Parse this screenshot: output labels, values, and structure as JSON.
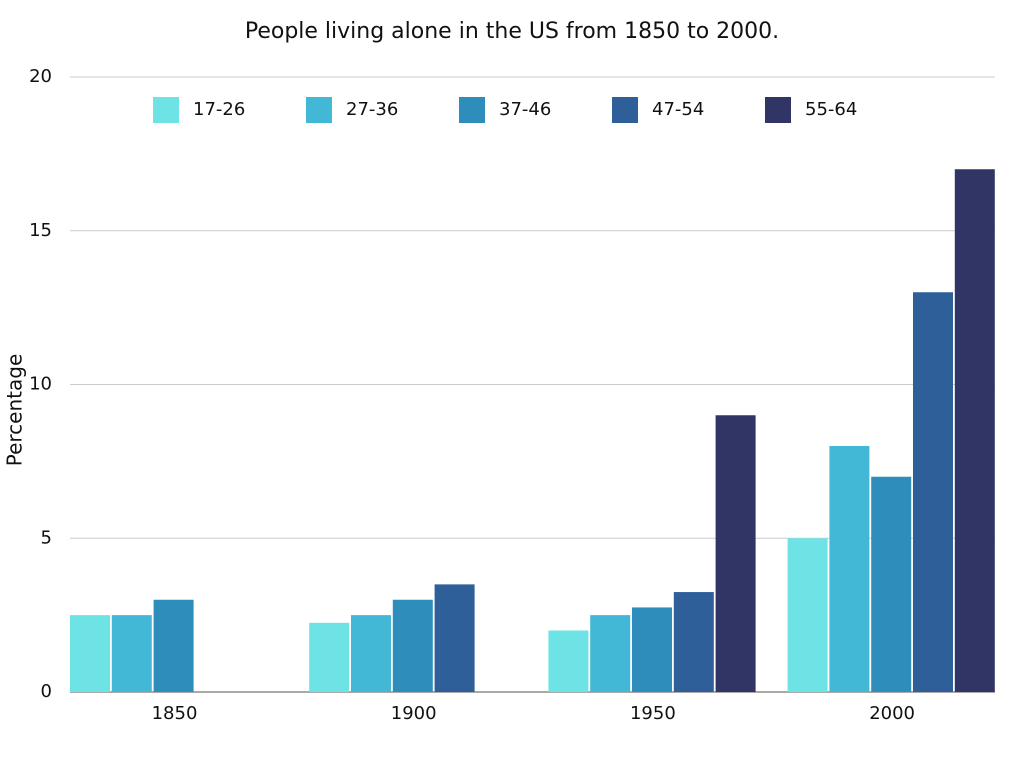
{
  "chart_data": {
    "type": "bar",
    "title": "People living alone in the US from 1850 to 2000.",
    "y_label": "Percentage",
    "categories": [
      "1850",
      "1900",
      "1950",
      "2000"
    ],
    "series": [
      {
        "name": "17-26",
        "color": "#6ee3e6",
        "values": [
          2.5,
          2.25,
          2,
          5
        ]
      },
      {
        "name": "27-36",
        "color": "#43b8d6",
        "values": [
          2.5,
          2.5,
          2.5,
          8
        ]
      },
      {
        "name": "37-46",
        "color": "#2e8dbb",
        "values": [
          3,
          3,
          2.75,
          7
        ]
      },
      {
        "name": "47-54",
        "color": "#2e5f98",
        "values": [
          0,
          3.5,
          3.25,
          13
        ]
      },
      {
        "name": "55-64",
        "color": "#303566",
        "values": [
          0,
          0,
          9,
          17
        ]
      }
    ],
    "ylim": [
      0,
      20
    ],
    "yticks": [
      0,
      5,
      10,
      15,
      20
    ],
    "grid": true,
    "legend": "top"
  }
}
